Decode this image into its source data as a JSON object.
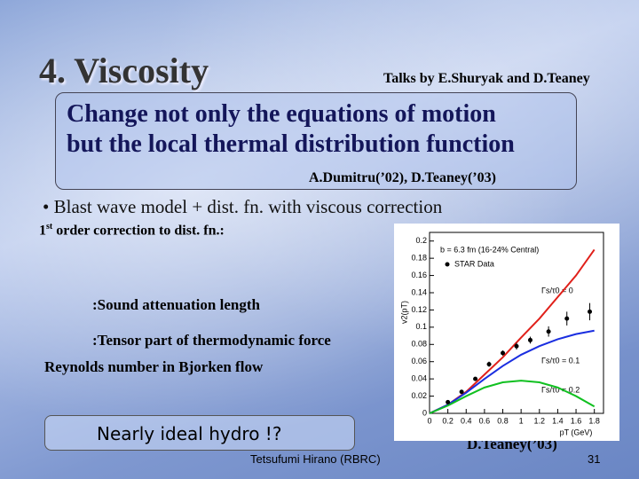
{
  "slide": {
    "title": "4. Viscosity",
    "talks": "Talks by E.Shuryak and D.Teaney",
    "box_lines": [
      "Change not only the equations of motion",
      "but the local thermal distribution function"
    ],
    "reference": "A.Dumitru(’02),   D.Teaney(’03)",
    "bullet": "• Blast wave model + dist. fn. with viscous correction",
    "correction": {
      "num": "1",
      "sup": "st",
      "rest": " order correction to dist. fn.:"
    },
    "sound": ":Sound attenuation length",
    "tensor": ":Tensor part of thermodynamic force",
    "reynolds": "Reynolds number in Bjorken flow",
    "conclusion": "Nearly ideal hydro !?",
    "figure_credit": "D.Teaney(’03)",
    "footer": "Tetsufumi Hirano (RBRC)",
    "page": "31"
  },
  "chart_data": {
    "type": "line",
    "annotation": "b = 6.3 fm (16-24% Central)",
    "xlabel": "pT (GeV)",
    "ylabel": "v2(pT)",
    "x": [
      0,
      0.2,
      0.4,
      0.6,
      0.8,
      1,
      1.2,
      1.4,
      1.6,
      1.8
    ],
    "series": [
      {
        "name": "Γs/τ0 = 0",
        "color": "#e0201a",
        "values": [
          0,
          0.01,
          0.025,
          0.045,
          0.065,
          0.088,
          0.11,
          0.135,
          0.16,
          0.19
        ]
      },
      {
        "name": "Γs/τ0 = 0.1",
        "color": "#1a2ee0",
        "values": [
          0,
          0.01,
          0.024,
          0.04,
          0.055,
          0.068,
          0.078,
          0.086,
          0.092,
          0.096
        ]
      },
      {
        "name": "Γs/τ0 = 0.2",
        "color": "#10c020",
        "values": [
          0,
          0.009,
          0.02,
          0.03,
          0.036,
          0.038,
          0.036,
          0.03,
          0.02,
          0.008
        ]
      }
    ],
    "points": {
      "name": "STAR Data",
      "color": "#000000",
      "x": [
        0.2,
        0.35,
        0.5,
        0.65,
        0.8,
        0.95,
        1.1,
        1.3,
        1.5,
        1.75
      ],
      "values": [
        0.013,
        0.025,
        0.04,
        0.057,
        0.07,
        0.078,
        0.085,
        0.095,
        0.11,
        0.118
      ],
      "errors": [
        0.002,
        0.002,
        0.002,
        0.003,
        0.003,
        0.004,
        0.004,
        0.006,
        0.008,
        0.01
      ]
    },
    "xlim": [
      0,
      1.9
    ],
    "ylim": [
      0,
      0.21
    ],
    "xticks": [
      0,
      0.2,
      0.4,
      0.6,
      0.8,
      1,
      1.2,
      1.4,
      1.6,
      1.8
    ],
    "yticks": [
      0,
      0.02,
      0.04,
      0.06,
      0.08,
      0.1,
      0.12,
      0.14,
      0.16,
      0.18,
      0.2
    ]
  }
}
